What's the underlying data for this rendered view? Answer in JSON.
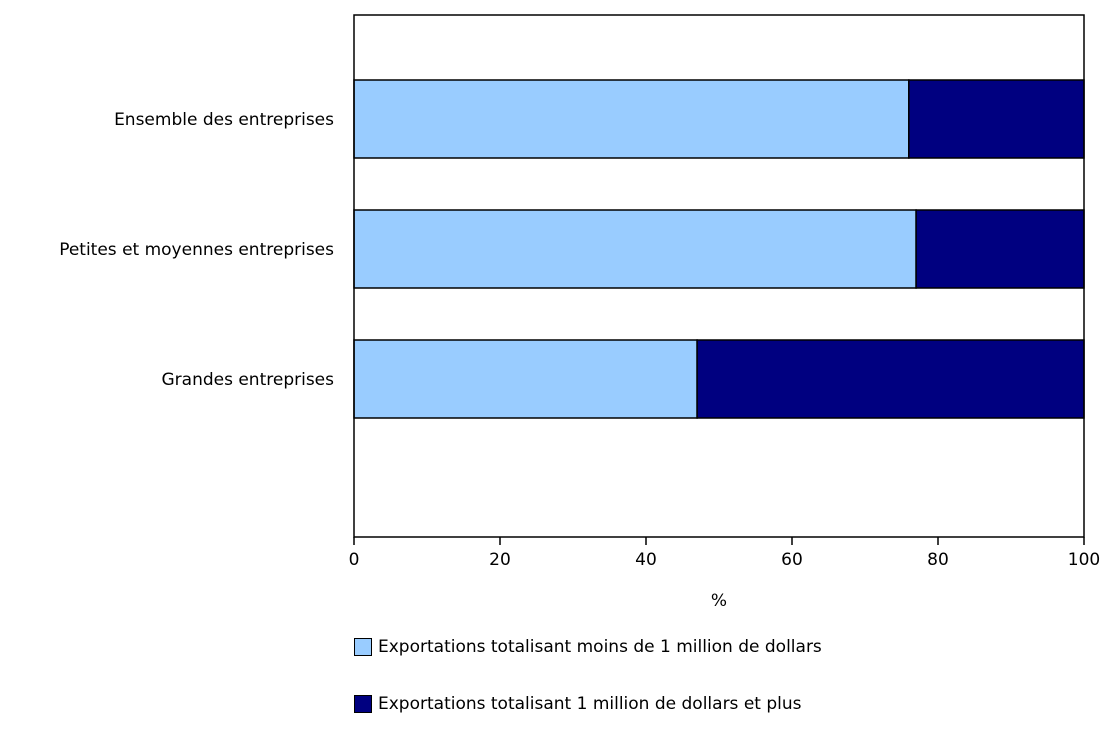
{
  "chart_data": {
    "type": "bar",
    "orientation": "horizontal",
    "stacked": true,
    "categories": [
      "Ensemble des entreprises",
      "Petites et moyennes entreprises",
      "Grandes entreprises"
    ],
    "series": [
      {
        "name": "Exportations totalisant moins de 1 million de dollars",
        "values": [
          76,
          77,
          47
        ],
        "color": "#99ccff"
      },
      {
        "name": "Exportations totalisant 1 million de dollars et plus",
        "values": [
          24,
          23,
          53
        ],
        "color": "#000080"
      }
    ],
    "xlabel": "%",
    "xlim": [
      0,
      100
    ],
    "xticks": [
      0,
      20,
      40,
      60,
      80,
      100
    ],
    "grid": false,
    "legend_position": "bottom"
  }
}
